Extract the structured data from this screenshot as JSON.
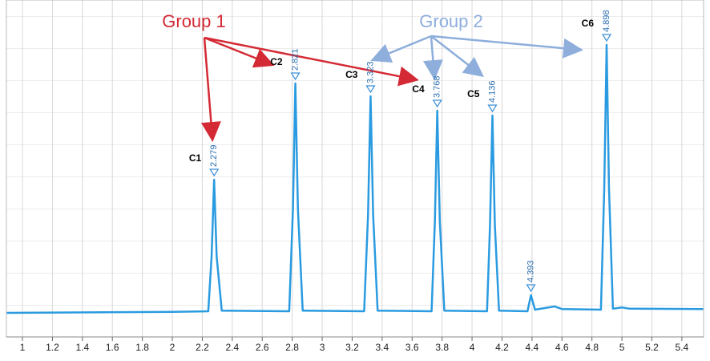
{
  "chart_data": {
    "type": "line",
    "x": [
      0.893,
      2.0,
      2.24,
      2.262,
      2.279,
      2.296,
      2.33,
      2.78,
      2.805,
      2.821,
      2.838,
      2.87,
      3.28,
      3.306,
      3.323,
      3.34,
      3.37,
      3.73,
      3.752,
      3.768,
      3.785,
      3.815,
      4.1,
      4.12,
      4.136,
      4.152,
      4.18,
      4.37,
      4.393,
      4.42,
      4.55,
      4.6,
      4.86,
      4.882,
      4.898,
      4.914,
      4.94,
      5.0,
      5.05,
      5.545
    ],
    "series": [
      {
        "color": "#2a9be0",
        "values": [
          7.5,
          7.8,
          8,
          25,
          49,
          25,
          8.2,
          8,
          40,
          79,
          40,
          8.2,
          8,
          38,
          75,
          38,
          8.2,
          8,
          36,
          70.5,
          36,
          8.2,
          8,
          35,
          69,
          35,
          8.2,
          8,
          13,
          8.5,
          9.5,
          8.7,
          8.5,
          46,
          91,
          46,
          8.8,
          9.2,
          8.8,
          8.7
        ]
      }
    ],
    "xlim": [
      0.893,
      5.545
    ],
    "ylim": [
      0,
      100
    ],
    "xticks": [
      1,
      1.2,
      1.4,
      1.6,
      1.8,
      2,
      2.2,
      2.4,
      2.6,
      2.8,
      3,
      3.2,
      3.4,
      3.6,
      3.8,
      4,
      4.2,
      4.4,
      4.6,
      4.8,
      5,
      5.2,
      5.4
    ],
    "grid": true,
    "peaks": [
      {
        "name": "C1",
        "time": 2.279,
        "height": 49
      },
      {
        "name": "C2",
        "time": 2.821,
        "height": 79
      },
      {
        "name": "C3",
        "time": 3.323,
        "height": 75
      },
      {
        "name": "C4",
        "time": 3.768,
        "height": 70.5
      },
      {
        "name": "C5",
        "time": 4.136,
        "height": 69
      },
      {
        "time": 4.393,
        "height": 13
      },
      {
        "name": "C6",
        "time": 4.898,
        "height": 91
      }
    ],
    "groups": [
      {
        "name": "Group 1",
        "color": "#d42a35"
      },
      {
        "name": "Group 2",
        "color": "#8eaedc"
      }
    ]
  }
}
